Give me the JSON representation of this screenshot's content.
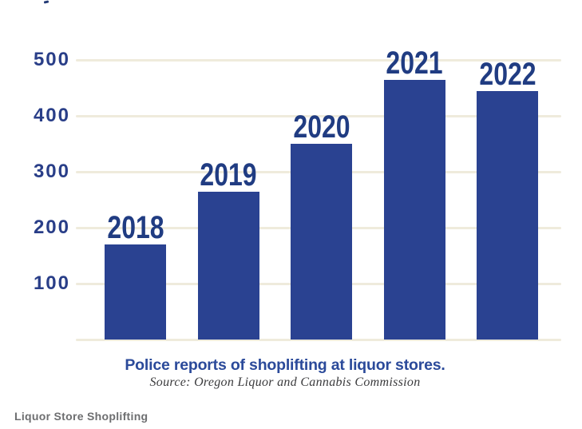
{
  "page": {
    "background": "#ffffff",
    "footer_label": "Liquor Store Shoplifting"
  },
  "chart_data": {
    "type": "bar",
    "categories": [
      "2018",
      "2019",
      "2020",
      "2021",
      "2022"
    ],
    "values": [
      170,
      265,
      350,
      465,
      445
    ],
    "title": "Police reports of shoplifting at liquor stores.",
    "subtitle": "Source: Oregon Liquor and Cannabis Commission",
    "xlabel": "",
    "ylabel": "",
    "y_ticks": [
      100,
      200,
      300,
      400,
      500
    ],
    "ylim": [
      0,
      500
    ],
    "grid": true,
    "legend": "none",
    "bar_color": "#2A4291",
    "year_label_color": "#203C82",
    "tick_color": "#293E88",
    "grid_color": "#EFEBDC",
    "title_color": "#2B4A9A",
    "source_color": "#3B3B3D",
    "footer_color": "#6D6E70"
  }
}
